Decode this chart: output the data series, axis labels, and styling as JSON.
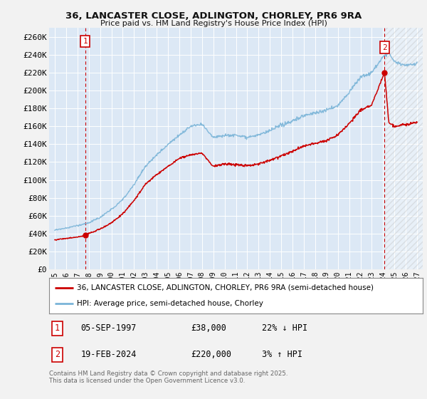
{
  "title_line1": "36, LANCASTER CLOSE, ADLINGTON, CHORLEY, PR6 9RA",
  "title_line2": "Price paid vs. HM Land Registry's House Price Index (HPI)",
  "ylim": [
    0,
    270000
  ],
  "yticks": [
    0,
    20000,
    40000,
    60000,
    80000,
    100000,
    120000,
    140000,
    160000,
    180000,
    200000,
    220000,
    240000,
    260000
  ],
  "ytick_labels": [
    "£0",
    "£20K",
    "£40K",
    "£60K",
    "£80K",
    "£100K",
    "£120K",
    "£140K",
    "£160K",
    "£180K",
    "£200K",
    "£220K",
    "£240K",
    "£260K"
  ],
  "hpi_color": "#7ab4d8",
  "price_color": "#cc0000",
  "plot_bg_color": "#dce8f5",
  "grid_color": "#ffffff",
  "fig_bg_color": "#f2f2f2",
  "legend_label_price": "36, LANCASTER CLOSE, ADLINGTON, CHORLEY, PR6 9RA (semi-detached house)",
  "legend_label_hpi": "HPI: Average price, semi-detached house, Chorley",
  "note1_date": "05-SEP-1997",
  "note1_price": "£38,000",
  "note1_hpi": "22% ↓ HPI",
  "note2_date": "19-FEB-2024",
  "note2_price": "£220,000",
  "note2_hpi": "3% ↑ HPI",
  "footer": "Contains HM Land Registry data © Crown copyright and database right 2025.\nThis data is licensed under the Open Government Licence v3.0.",
  "sale1_year": 1997.68,
  "sale1_price": 38000,
  "sale2_year": 2024.12,
  "sale2_price": 220000,
  "hpi_knots_x": [
    1995,
    1996,
    1997,
    1998,
    1999,
    2000,
    2001,
    2002,
    2003,
    2004,
    2005,
    2006,
    2007,
    2008,
    2009,
    2010,
    2011,
    2012,
    2013,
    2014,
    2015,
    2016,
    2017,
    2018,
    2019,
    2020,
    2021,
    2022,
    2023,
    2024,
    2024.5,
    2025,
    2026,
    2027
  ],
  "hpi_knots_y": [
    44000,
    46000,
    49000,
    52000,
    58000,
    67000,
    78000,
    95000,
    115000,
    128000,
    140000,
    150000,
    160000,
    162000,
    148000,
    150000,
    150000,
    148000,
    150000,
    155000,
    161000,
    166000,
    172000,
    175000,
    178000,
    183000,
    198000,
    215000,
    220000,
    238000,
    242000,
    232000,
    228000,
    230000
  ],
  "price_knots_x": [
    1995,
    1996,
    1997,
    1997.68,
    1998,
    1999,
    2000,
    2001,
    2002,
    2003,
    2004,
    2005,
    2006,
    2007,
    2008,
    2009,
    2010,
    2011,
    2012,
    2013,
    2014,
    2015,
    2016,
    2017,
    2018,
    2019,
    2020,
    2021,
    2022,
    2023,
    2024.12,
    2024.5,
    2025,
    2026,
    2027
  ],
  "price_knots_y": [
    33000,
    34500,
    36000,
    38000,
    40000,
    45000,
    52000,
    62000,
    77000,
    95000,
    106000,
    115000,
    124000,
    128000,
    130000,
    115000,
    118000,
    117000,
    116000,
    118000,
    122000,
    127000,
    132000,
    138000,
    141000,
    144000,
    150000,
    163000,
    178000,
    184000,
    220000,
    165000,
    160000,
    162000,
    164000
  ]
}
